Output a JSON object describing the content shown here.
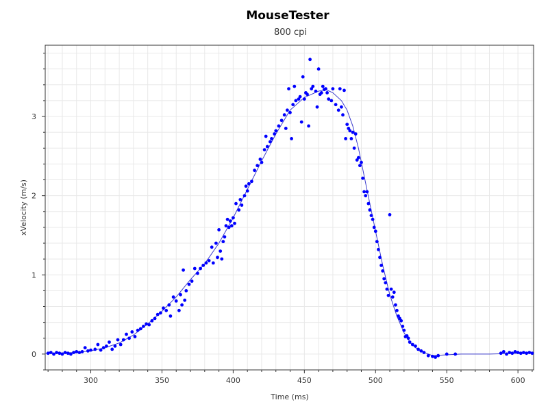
{
  "chart_data": {
    "type": "scatter",
    "title": "MouseTester",
    "subtitle": "800 cpi",
    "xlabel": "Time (ms)",
    "ylabel": "xVelocity (m/s)",
    "xlim": [
      268,
      611
    ],
    "ylim": [
      -0.2,
      3.9
    ],
    "x_ticks": [
      300,
      350,
      400,
      450,
      500,
      550,
      600
    ],
    "y_ticks": [
      0,
      1,
      2,
      3
    ],
    "grid": true,
    "legend": "none",
    "colors": {
      "points": "#0000ff",
      "line": "#3a3acc"
    },
    "series": [
      {
        "kind": "points",
        "points": [
          [
            270,
            0.01
          ],
          [
            272,
            0.02
          ],
          [
            274,
            0.0
          ],
          [
            276,
            0.02
          ],
          [
            278,
            0.01
          ],
          [
            280,
            0.0
          ],
          [
            282,
            0.02
          ],
          [
            284,
            0.01
          ],
          [
            286,
            0.0
          ],
          [
            288,
            0.02
          ],
          [
            290,
            0.03
          ],
          [
            292,
            0.02
          ],
          [
            294,
            0.03
          ],
          [
            296,
            0.08
          ],
          [
            298,
            0.04
          ],
          [
            300,
            0.05
          ],
          [
            303,
            0.06
          ],
          [
            305,
            0.12
          ],
          [
            307,
            0.05
          ],
          [
            309,
            0.08
          ],
          [
            311,
            0.1
          ],
          [
            313,
            0.15
          ],
          [
            315,
            0.06
          ],
          [
            317,
            0.1
          ],
          [
            319,
            0.18
          ],
          [
            321,
            0.12
          ],
          [
            323,
            0.18
          ],
          [
            325,
            0.25
          ],
          [
            327,
            0.2
          ],
          [
            329,
            0.28
          ],
          [
            331,
            0.22
          ],
          [
            333,
            0.3
          ],
          [
            335,
            0.32
          ],
          [
            337,
            0.35
          ],
          [
            339,
            0.38
          ],
          [
            341,
            0.37
          ],
          [
            343,
            0.42
          ],
          [
            345,
            0.45
          ],
          [
            347,
            0.5
          ],
          [
            349,
            0.52
          ],
          [
            351,
            0.58
          ],
          [
            353,
            0.55
          ],
          [
            355,
            0.62
          ],
          [
            356,
            0.48
          ],
          [
            358,
            0.72
          ],
          [
            360,
            0.67
          ],
          [
            362,
            0.55
          ],
          [
            363,
            0.75
          ],
          [
            364,
            0.62
          ],
          [
            365,
            1.06
          ],
          [
            366,
            0.68
          ],
          [
            367,
            0.8
          ],
          [
            369,
            0.88
          ],
          [
            371,
            0.92
          ],
          [
            373,
            1.08
          ],
          [
            375,
            1.02
          ],
          [
            377,
            1.08
          ],
          [
            379,
            1.12
          ],
          [
            381,
            1.15
          ],
          [
            383,
            1.18
          ],
          [
            385,
            1.35
          ],
          [
            386,
            1.15
          ],
          [
            388,
            1.4
          ],
          [
            389,
            1.22
          ],
          [
            390,
            1.57
          ],
          [
            391,
            1.3
          ],
          [
            392,
            1.2
          ],
          [
            393,
            1.42
          ],
          [
            394,
            1.48
          ],
          [
            395,
            1.62
          ],
          [
            396,
            1.7
          ],
          [
            397,
            1.6
          ],
          [
            398,
            1.68
          ],
          [
            399,
            1.62
          ],
          [
            400,
            1.72
          ],
          [
            401,
            1.65
          ],
          [
            402,
            1.9
          ],
          [
            404,
            1.82
          ],
          [
            405,
            1.95
          ],
          [
            406,
            1.88
          ],
          [
            408,
            2.0
          ],
          [
            409,
            2.12
          ],
          [
            410,
            2.06
          ],
          [
            411,
            2.15
          ],
          [
            413,
            2.18
          ],
          [
            415,
            2.32
          ],
          [
            417,
            2.38
          ],
          [
            419,
            2.46
          ],
          [
            420,
            2.42
          ],
          [
            422,
            2.58
          ],
          [
            423,
            2.75
          ],
          [
            424,
            2.62
          ],
          [
            426,
            2.68
          ],
          [
            427,
            2.72
          ],
          [
            429,
            2.78
          ],
          [
            430,
            2.82
          ],
          [
            432,
            2.88
          ],
          [
            434,
            2.95
          ],
          [
            436,
            3.02
          ],
          [
            437,
            2.85
          ],
          [
            438,
            3.08
          ],
          [
            439,
            3.35
          ],
          [
            440,
            3.05
          ],
          [
            441,
            2.72
          ],
          [
            442,
            3.15
          ],
          [
            443,
            3.38
          ],
          [
            444,
            3.2
          ],
          [
            446,
            3.22
          ],
          [
            447,
            3.25
          ],
          [
            448,
            2.93
          ],
          [
            449,
            3.5
          ],
          [
            450,
            3.22
          ],
          [
            451,
            3.3
          ],
          [
            452,
            3.28
          ],
          [
            453,
            2.88
          ],
          [
            454,
            3.72
          ],
          [
            455,
            3.35
          ],
          [
            456,
            3.38
          ],
          [
            458,
            3.32
          ],
          [
            459,
            3.12
          ],
          [
            460,
            3.6
          ],
          [
            461,
            3.28
          ],
          [
            462,
            3.3
          ],
          [
            463,
            3.38
          ],
          [
            464,
            3.34
          ],
          [
            465,
            3.35
          ],
          [
            466,
            3.3
          ],
          [
            467,
            3.22
          ],
          [
            469,
            3.2
          ],
          [
            470,
            3.35
          ],
          [
            472,
            3.15
          ],
          [
            474,
            3.08
          ],
          [
            475,
            3.35
          ],
          [
            476,
            3.12
          ],
          [
            477,
            3.02
          ],
          [
            478,
            3.33
          ],
          [
            479,
            2.72
          ],
          [
            480,
            2.9
          ],
          [
            481,
            2.85
          ],
          [
            482,
            2.82
          ],
          [
            483,
            2.72
          ],
          [
            484,
            2.8
          ],
          [
            485,
            2.6
          ],
          [
            486,
            2.78
          ],
          [
            487,
            2.45
          ],
          [
            488,
            2.48
          ],
          [
            489,
            2.38
          ],
          [
            490,
            2.42
          ],
          [
            491,
            2.22
          ],
          [
            492,
            2.05
          ],
          [
            493,
            2.0
          ],
          [
            494,
            2.05
          ],
          [
            495,
            1.9
          ],
          [
            496,
            1.82
          ],
          [
            497,
            1.75
          ],
          [
            498,
            1.7
          ],
          [
            499,
            1.6
          ],
          [
            500,
            1.55
          ],
          [
            501,
            1.42
          ],
          [
            502,
            1.32
          ],
          [
            503,
            1.22
          ],
          [
            504,
            1.12
          ],
          [
            505,
            1.05
          ],
          [
            506,
            0.95
          ],
          [
            507,
            0.9
          ],
          [
            508,
            0.82
          ],
          [
            509,
            0.74
          ],
          [
            510,
            1.76
          ],
          [
            511,
            0.82
          ],
          [
            512,
            0.72
          ],
          [
            513,
            0.78
          ],
          [
            514,
            0.62
          ],
          [
            515,
            0.55
          ],
          [
            516,
            0.48
          ],
          [
            517,
            0.45
          ],
          [
            518,
            0.42
          ],
          [
            519,
            0.35
          ],
          [
            520,
            0.3
          ],
          [
            521,
            0.22
          ],
          [
            522,
            0.23
          ],
          [
            523,
            0.2
          ],
          [
            524,
            0.15
          ],
          [
            526,
            0.12
          ],
          [
            528,
            0.1
          ],
          [
            530,
            0.06
          ],
          [
            532,
            0.04
          ],
          [
            534,
            0.02
          ],
          [
            537,
            -0.02
          ],
          [
            540,
            -0.03
          ],
          [
            542,
            -0.04
          ],
          [
            544,
            -0.02
          ],
          [
            550,
            0.0
          ],
          [
            556,
            0.0
          ],
          [
            588,
            0.01
          ],
          [
            590,
            0.03
          ],
          [
            592,
            0.0
          ],
          [
            594,
            0.02
          ],
          [
            596,
            0.01
          ],
          [
            598,
            0.03
          ],
          [
            600,
            0.02
          ],
          [
            602,
            0.01
          ],
          [
            604,
            0.02
          ],
          [
            606,
            0.01
          ],
          [
            608,
            0.02
          ],
          [
            610,
            0.01
          ]
        ]
      },
      {
        "kind": "line",
        "points": [
          [
            268,
            0.01
          ],
          [
            290,
            0.02
          ],
          [
            300,
            0.04
          ],
          [
            310,
            0.08
          ],
          [
            320,
            0.14
          ],
          [
            330,
            0.24
          ],
          [
            340,
            0.38
          ],
          [
            350,
            0.54
          ],
          [
            360,
            0.72
          ],
          [
            370,
            0.94
          ],
          [
            380,
            1.14
          ],
          [
            390,
            1.4
          ],
          [
            400,
            1.72
          ],
          [
            410,
            2.08
          ],
          [
            420,
            2.44
          ],
          [
            430,
            2.78
          ],
          [
            440,
            3.08
          ],
          [
            450,
            3.24
          ],
          [
            460,
            3.32
          ],
          [
            465,
            3.34
          ],
          [
            470,
            3.3
          ],
          [
            476,
            3.2
          ],
          [
            480,
            3.08
          ],
          [
            484,
            2.88
          ],
          [
            488,
            2.6
          ],
          [
            492,
            2.25
          ],
          [
            496,
            1.9
          ],
          [
            500,
            1.55
          ],
          [
            505,
            1.12
          ],
          [
            510,
            0.75
          ],
          [
            515,
            0.48
          ],
          [
            520,
            0.27
          ],
          [
            525,
            0.13
          ],
          [
            530,
            0.05
          ],
          [
            540,
            -0.02
          ],
          [
            550,
            -0.01
          ],
          [
            560,
            0.0
          ],
          [
            580,
            0.0
          ],
          [
            600,
            0.01
          ],
          [
            611,
            0.01
          ]
        ]
      }
    ]
  }
}
